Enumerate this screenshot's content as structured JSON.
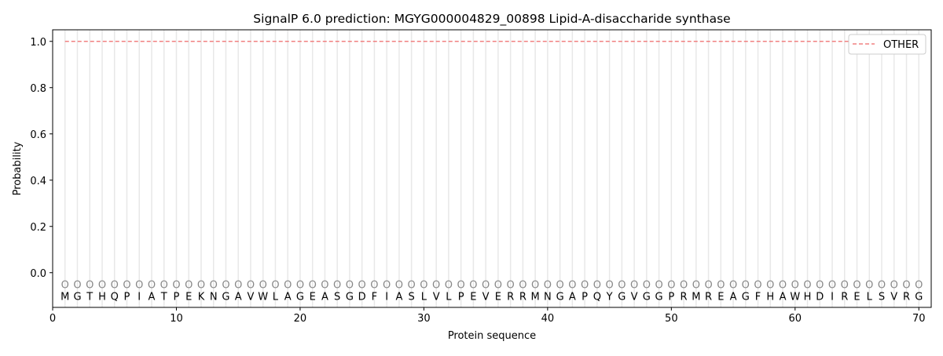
{
  "chart_data": {
    "type": "line",
    "title": "SignalP 6.0 prediction: MGYG000004829_00898 Lipid-A-disaccharide synthase",
    "xlabel": "Protein sequence",
    "ylabel": "Probability",
    "xlim": [
      0,
      71
    ],
    "ylim": [
      -0.15,
      1.05
    ],
    "xticks": [
      0,
      10,
      20,
      30,
      40,
      50,
      60,
      70
    ],
    "yticks": [
      0.0,
      0.2,
      0.4,
      0.6,
      0.8,
      1.0
    ],
    "ytick_labels": [
      "0.0",
      "0.2",
      "0.4",
      "0.6",
      "0.8",
      "1.0"
    ],
    "grid": "vertical lines at each residue",
    "legend_position": "top-right",
    "sequence": [
      "M",
      "G",
      "T",
      "H",
      "Q",
      "P",
      "I",
      "A",
      "T",
      "P",
      "E",
      "K",
      "N",
      "G",
      "A",
      "V",
      "W",
      "L",
      "A",
      "G",
      "E",
      "A",
      "S",
      "G",
      "D",
      "F",
      "I",
      "A",
      "S",
      "L",
      "V",
      "L",
      "P",
      "E",
      "V",
      "E",
      "R",
      "R",
      "M",
      "N",
      "G",
      "A",
      "P",
      "Q",
      "Y",
      "G",
      "V",
      "G",
      "G",
      "P",
      "R",
      "M",
      "R",
      "E",
      "A",
      "G",
      "F",
      "H",
      "A",
      "W",
      "H",
      "D",
      "I",
      "R",
      "E",
      "L",
      "S",
      "V",
      "R",
      "G"
    ],
    "predicted_labels": "OOOOOOOOOOOOOOOOOOOOOOOOOOOOOOOOOOOOOOOOOOOOOOOOOOOOOOOOOOOOOOOOOOOOOO",
    "series": [
      {
        "name": "OTHER",
        "color": "#f08080",
        "style": "dashed",
        "x_range": [
          1,
          70
        ],
        "value": 1.0
      }
    ]
  }
}
